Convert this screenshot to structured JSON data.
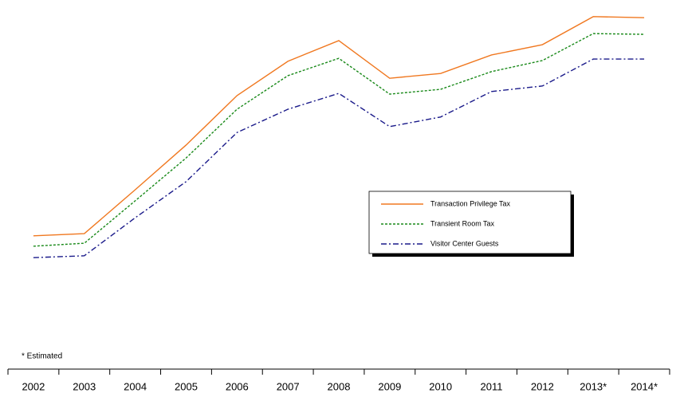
{
  "chart_data": {
    "type": "line",
    "categories": [
      "2002",
      "2003",
      "2004",
      "2005",
      "2006",
      "2007",
      "2008",
      "2009",
      "2010",
      "2011",
      "2012",
      "2013*",
      "2014*"
    ],
    "series": [
      {
        "name": "Transaction Privilege Tax",
        "color": "#f07820",
        "dash": "solid",
        "values": [
          36.1,
          36.7,
          48.6,
          60.7,
          74.1,
          83.4,
          89.0,
          78.8,
          80.1,
          85.1,
          87.9,
          95.5,
          95.2
        ]
      },
      {
        "name": "Transient Room Tax",
        "color": "#1a8a1a",
        "dash": "dashed",
        "values": [
          33.3,
          34.1,
          45.6,
          57.2,
          70.4,
          79.5,
          84.2,
          74.5,
          75.8,
          80.6,
          83.6,
          90.9,
          90.7
        ]
      },
      {
        "name": "Visitor Center Guests",
        "color": "#1a1a8a",
        "dash": "dash-dot",
        "values": [
          30.2,
          30.7,
          41.0,
          50.8,
          64.1,
          70.4,
          74.7,
          65.7,
          68.3,
          75.2,
          76.7,
          84.0,
          84.0
        ]
      }
    ],
    "ylim": [
      0,
      100
    ],
    "annotation": "* Estimated"
  }
}
